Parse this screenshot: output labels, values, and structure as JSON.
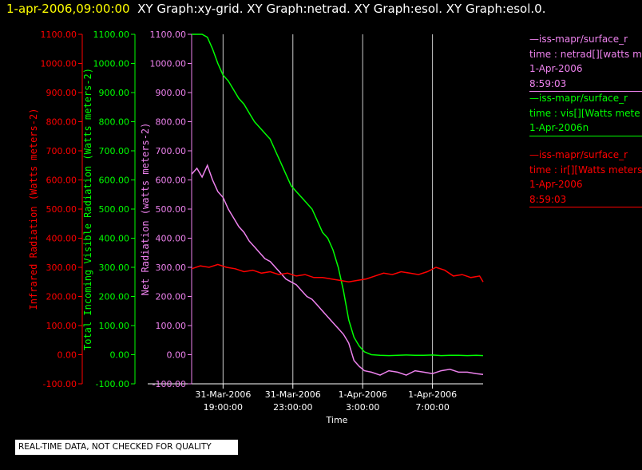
{
  "header": {
    "date": "1-apr-2006,09:00:00",
    "graphs": "XY Graph:xy-grid.  XY Graph:netrad.  XY Graph:esol.  XY Graph:esol.0."
  },
  "colors": {
    "ir": "#ff0000",
    "vis": "#00ff00",
    "net": "#ee82ee",
    "grid": "#ffffff",
    "header_date": "#ffff00"
  },
  "legend": [
    {
      "name": "netrad-legend",
      "color": "#ee82ee",
      "lines": [
        "—iss-mapr/surface_r",
        "time : netrad[][watts m",
        "1-Apr-2006",
        "8:59:03"
      ]
    },
    {
      "name": "vis-legend",
      "color": "#00ff00",
      "lines": [
        "—iss-mapr/surface_r",
        "time : vis[][Watts mete",
        "1-Apr-2006n"
      ]
    },
    {
      "name": "ir-legend",
      "color": "#ff0000",
      "lines": [
        "—iss-mapr/surface_r",
        "time : ir[][Watts meters",
        "1-Apr-2006",
        "8:59:03"
      ]
    }
  ],
  "notice": "REAL-TIME DATA, NOT CHECKED FOR QUALITY",
  "chart_data": {
    "type": "line",
    "xlabel": "Time",
    "x_range_hours": [
      17.2,
      33.9
    ],
    "x_ticks": [
      {
        "hour": 19,
        "line1": "31-Mar-2006",
        "line2": "19:00:00"
      },
      {
        "hour": 23,
        "line1": "31-Mar-2006",
        "line2": "23:00:00"
      },
      {
        "hour": 27,
        "line1": "1-Apr-2006",
        "line2": "3:00:00"
      },
      {
        "hour": 31,
        "line1": "1-Apr-2006",
        "line2": "7:00:00"
      }
    ],
    "ylim": [
      -100,
      1100
    ],
    "y_ticks": [
      -100,
      0,
      100,
      200,
      300,
      400,
      500,
      600,
      700,
      800,
      900,
      1000,
      1100
    ],
    "axes": [
      {
        "name": "ir-axis",
        "label": "Infrared Radiation (Watts meters-2)",
        "color": "#ff0000"
      },
      {
        "name": "vis-axis",
        "label": "Total Incoming Visible Radiation (Watts meters-2)",
        "color": "#00ff00"
      },
      {
        "name": "net-axis",
        "label": "Net Radiation (watts meters-2)",
        "color": "#ee82ee"
      }
    ],
    "series": [
      {
        "name": "vis",
        "color": "#00ff00",
        "x": [
          17.2,
          17.5,
          17.8,
          18.1,
          18.4,
          18.7,
          19.0,
          19.3,
          19.6,
          19.9,
          20.2,
          20.5,
          20.8,
          21.1,
          21.4,
          21.7,
          22.0,
          22.3,
          22.6,
          22.9,
          23.2,
          23.5,
          23.8,
          24.1,
          24.4,
          24.7,
          25.0,
          25.3,
          25.6,
          25.9,
          26.2,
          26.5,
          26.8,
          27.1,
          27.5,
          28.0,
          28.5,
          29.0,
          29.5,
          30.0,
          30.5,
          31.0,
          31.5,
          32.0,
          32.5,
          33.0,
          33.5,
          33.9
        ],
        "values": [
          1100,
          1100,
          1100,
          1090,
          1050,
          1000,
          960,
          940,
          910,
          880,
          860,
          830,
          800,
          780,
          760,
          740,
          700,
          660,
          620,
          580,
          560,
          540,
          520,
          500,
          460,
          420,
          400,
          360,
          300,
          220,
          120,
          60,
          30,
          10,
          0,
          -2,
          -3,
          -2,
          -1,
          -2,
          -2,
          -1,
          -3,
          -2,
          -2,
          -3,
          -2,
          -3
        ]
      },
      {
        "name": "net",
        "color": "#ee82ee",
        "x": [
          17.2,
          17.5,
          17.8,
          18.1,
          18.4,
          18.7,
          19.0,
          19.3,
          19.6,
          19.9,
          20.2,
          20.5,
          20.8,
          21.1,
          21.4,
          21.7,
          22.0,
          22.3,
          22.6,
          22.9,
          23.2,
          23.5,
          23.8,
          24.1,
          24.4,
          24.7,
          25.0,
          25.3,
          25.6,
          25.9,
          26.2,
          26.5,
          26.8,
          27.1,
          27.5,
          28.0,
          28.5,
          29.0,
          29.5,
          30.0,
          30.5,
          31.0,
          31.5,
          32.0,
          32.5,
          33.0,
          33.5,
          33.9
        ],
        "values": [
          620,
          640,
          610,
          650,
          600,
          560,
          540,
          500,
          470,
          440,
          420,
          390,
          370,
          350,
          330,
          320,
          300,
          280,
          260,
          250,
          240,
          220,
          200,
          190,
          170,
          150,
          130,
          110,
          90,
          70,
          40,
          -20,
          -40,
          -55,
          -60,
          -70,
          -55,
          -60,
          -70,
          -55,
          -60,
          -65,
          -55,
          -50,
          -60,
          -60,
          -65,
          -68
        ]
      },
      {
        "name": "ir",
        "color": "#ff0000",
        "x": [
          17.2,
          17.7,
          18.2,
          18.7,
          19.2,
          19.7,
          20.2,
          20.7,
          21.2,
          21.7,
          22.2,
          22.7,
          23.2,
          23.7,
          24.2,
          24.7,
          25.2,
          25.7,
          26.2,
          26.7,
          27.2,
          27.7,
          28.2,
          28.7,
          29.2,
          29.7,
          30.2,
          30.7,
          31.2,
          31.7,
          32.2,
          32.7,
          33.2,
          33.7,
          33.9
        ],
        "values": [
          295,
          305,
          300,
          310,
          300,
          295,
          285,
          290,
          280,
          285,
          275,
          280,
          270,
          275,
          265,
          265,
          260,
          255,
          250,
          255,
          260,
          270,
          280,
          275,
          285,
          280,
          275,
          285,
          300,
          290,
          270,
          275,
          265,
          270,
          250
        ]
      }
    ]
  }
}
